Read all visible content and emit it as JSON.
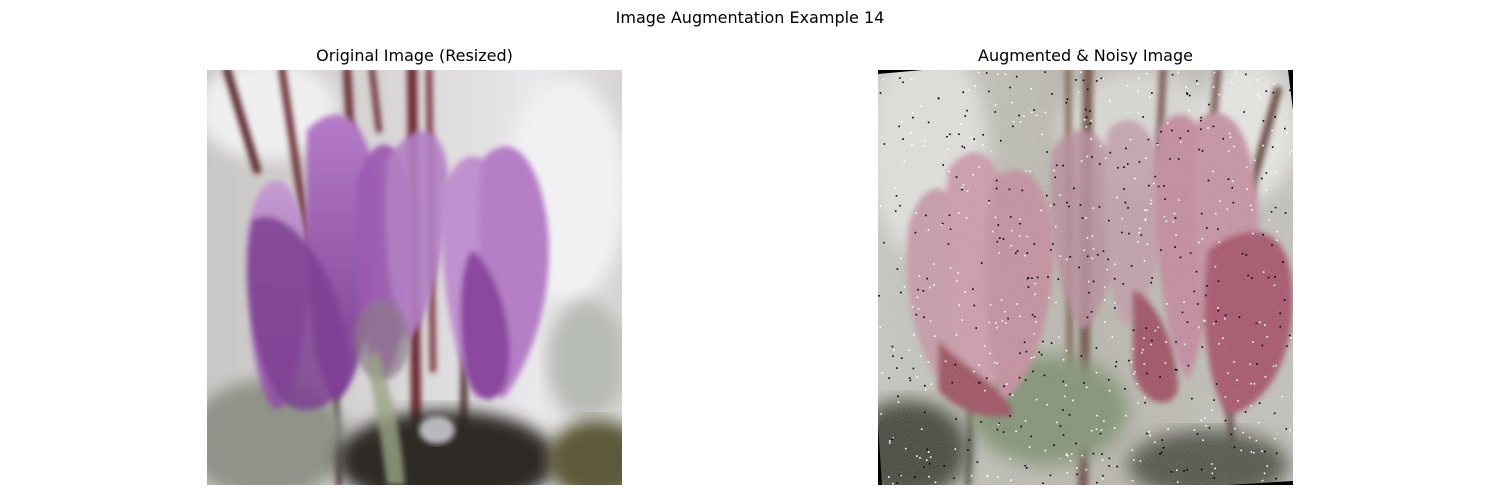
{
  "figure": {
    "title": "Image Augmentation Example 14"
  },
  "panels": [
    {
      "title": "Original Image (Resized)",
      "image": "purple cyclamen flowers photo"
    },
    {
      "title": "Augmented & Noisy Image",
      "image": "mirrored, noisy pink cyclamen flowers photo with salt-and-pepper noise"
    }
  ]
}
